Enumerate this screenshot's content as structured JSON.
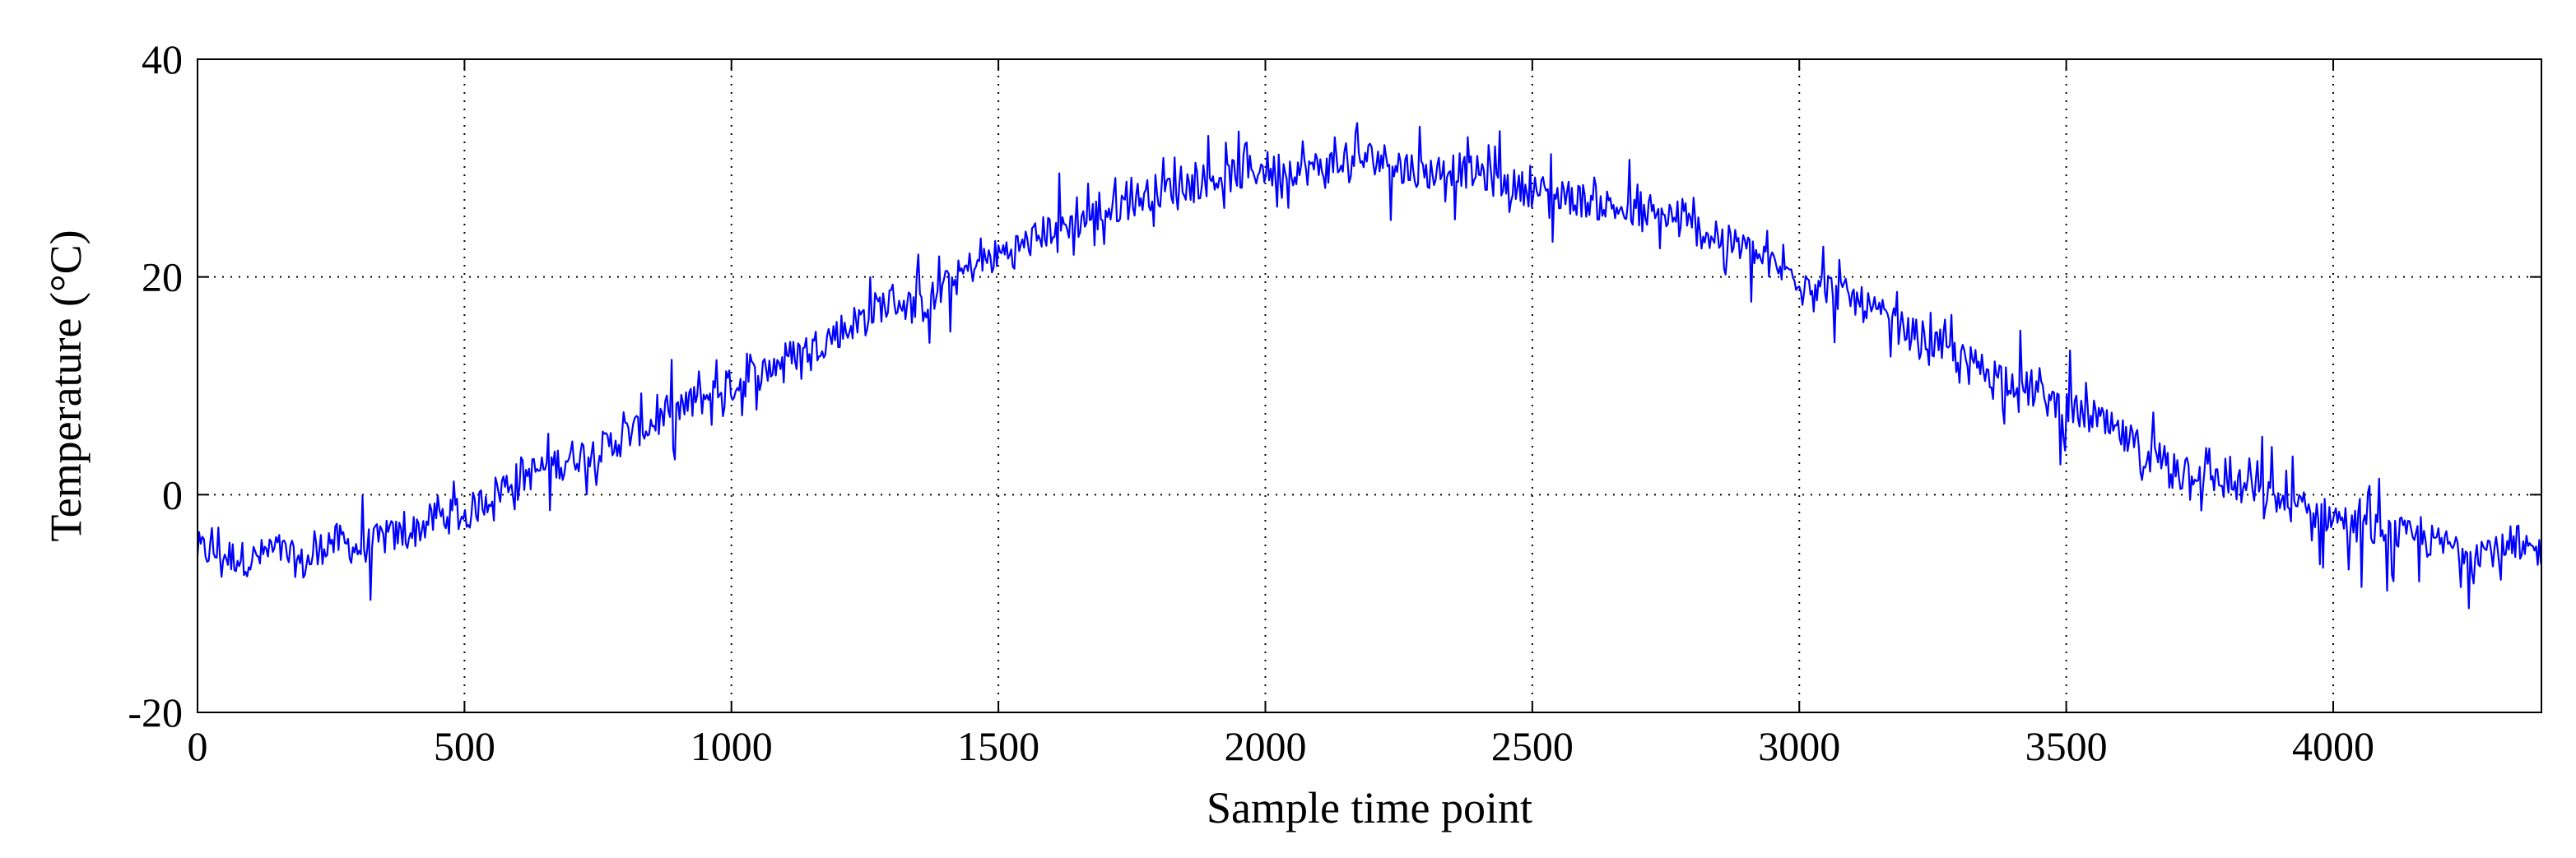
{
  "chart_data": {
    "type": "line",
    "title": "",
    "xlabel": "Sample time point",
    "ylabel": "Temperature (°C)",
    "xlim": [
      0,
      4390
    ],
    "ylim": [
      -20,
      40
    ],
    "x_ticks": [
      0,
      500,
      1000,
      1500,
      2000,
      2500,
      3000,
      3500,
      4000
    ],
    "y_ticks": [
      -20,
      0,
      20,
      40
    ],
    "grid": true,
    "legend": "none",
    "series": [
      {
        "color": "#0000ff",
        "x": [
          0,
          50,
          100,
          150,
          200,
          250,
          300,
          350,
          400,
          450,
          500,
          550,
          600,
          650,
          700,
          750,
          800,
          850,
          900,
          950,
          1000,
          1050,
          1100,
          1150,
          1200,
          1250,
          1300,
          1350,
          1400,
          1450,
          1500,
          1550,
          1600,
          1650,
          1700,
          1750,
          1800,
          1850,
          1900,
          1950,
          2000,
          2050,
          2100,
          2150,
          2200,
          2250,
          2300,
          2350,
          2400,
          2450,
          2500,
          2550,
          2600,
          2650,
          2700,
          2750,
          2800,
          2850,
          2900,
          2950,
          3000,
          3050,
          3100,
          3150,
          3200,
          3250,
          3300,
          3350,
          3400,
          3450,
          3500,
          3550,
          3600,
          3650,
          3700,
          3750,
          3800,
          3850,
          3900,
          3950,
          4000,
          4050,
          4100,
          4150,
          4200,
          4250,
          4300,
          4350,
          4390
        ],
        "y": [
          -5,
          -5.5,
          -6,
          -5,
          -6.5,
          -4,
          -5,
          -4,
          -3.5,
          -2,
          -2,
          0,
          1.5,
          2.5,
          3.5,
          4,
          5.5,
          6.5,
          7.5,
          9,
          10,
          11,
          12.5,
          13.5,
          15,
          16.5,
          18,
          17,
          19,
          21,
          22,
          23,
          24.5,
          25,
          26,
          27,
          28,
          28.5,
          29,
          29.5,
          30,
          30,
          30,
          30.5,
          31,
          30.5,
          29.5,
          30,
          29.5,
          28.5,
          28,
          27.5,
          27,
          26.5,
          25.5,
          25.5,
          24.5,
          23.5,
          22.5,
          21,
          20,
          19,
          18,
          16.5,
          15,
          14,
          12.5,
          11.5,
          10.5,
          9,
          8,
          7,
          5.5,
          4,
          3,
          2,
          1,
          0.5,
          -0.5,
          -1.5,
          -2,
          -3,
          -3.5,
          -4,
          -4.5,
          -5,
          -5,
          -5.5,
          -5
        ]
      }
    ]
  }
}
